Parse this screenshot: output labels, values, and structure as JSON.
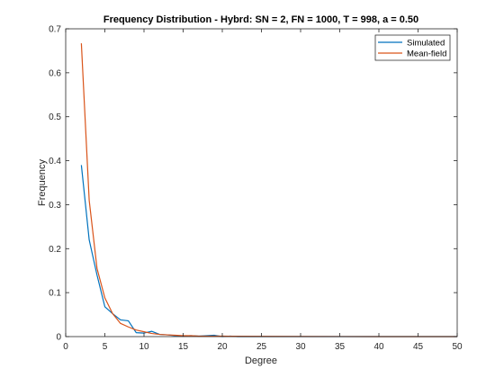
{
  "chart_data": {
    "type": "line",
    "title": "Frequency Distribution - Hybrd: SN = 2, FN = 1000, T = 998, a = 0.50",
    "xlabel": "Degree",
    "ylabel": "Frequency",
    "xlim": [
      0,
      50
    ],
    "ylim": [
      0,
      0.7
    ],
    "xticks": [
      0,
      5,
      10,
      15,
      20,
      25,
      30,
      35,
      40,
      45,
      50
    ],
    "yticks": [
      0,
      0.1,
      0.2,
      0.3,
      0.4,
      0.5,
      0.6,
      0.7
    ],
    "xtick_labels": [
      "0",
      "5",
      "10",
      "15",
      "20",
      "25",
      "30",
      "35",
      "40",
      "45",
      "50"
    ],
    "ytick_labels": [
      "0",
      "0.1",
      "0.2",
      "0.3",
      "0.4",
      "0.5",
      "0.6",
      "0.7"
    ],
    "grid": false,
    "legend_position": "top-right",
    "series": [
      {
        "name": "Simulated",
        "color": "#0072bd",
        "x": [
          2,
          3,
          4,
          5,
          6,
          7,
          8,
          9,
          10,
          11,
          12,
          13,
          14,
          15,
          16,
          17,
          18,
          19,
          20,
          21,
          22,
          25,
          30,
          35,
          40,
          45,
          50
        ],
        "y": [
          0.39,
          0.22,
          0.14,
          0.068,
          0.052,
          0.038,
          0.036,
          0.009,
          0.008,
          0.012,
          0.005,
          0.004,
          0.002,
          0.001,
          0.002,
          0.001,
          0.002,
          0.003,
          0.0,
          0.001,
          0.0,
          0.0,
          0.0,
          0.0,
          0.0,
          0.0,
          0.0
        ]
      },
      {
        "name": "Mean-field",
        "color": "#d95319",
        "x": [
          2,
          3,
          4,
          5,
          6,
          7,
          8,
          9,
          10,
          11,
          12,
          13,
          14,
          15,
          16,
          17,
          18,
          19,
          20,
          25,
          30,
          35,
          40,
          45,
          50
        ],
        "y": [
          0.667,
          0.31,
          0.155,
          0.088,
          0.052,
          0.03,
          0.022,
          0.015,
          0.011,
          0.007,
          0.005,
          0.004,
          0.003,
          0.002,
          0.002,
          0.001,
          0.001,
          0.001,
          0.001,
          0.0005,
          0.0002,
          0.0001,
          0.0,
          0.0,
          0.0
        ]
      }
    ]
  }
}
